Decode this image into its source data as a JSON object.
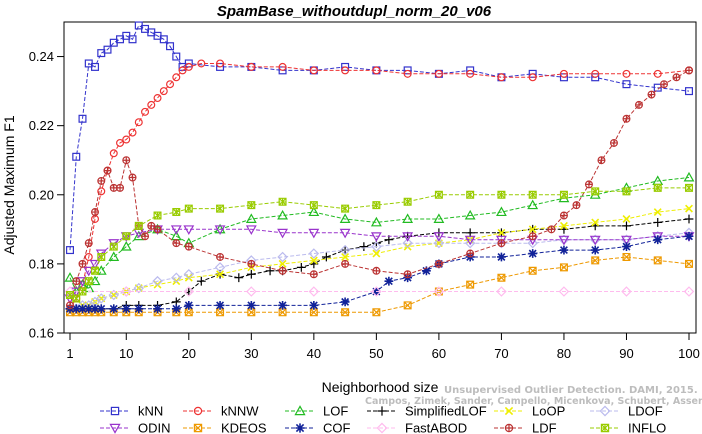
{
  "chart_data": {
    "type": "line",
    "title": "SpamBase_withoutdupl_norm_20_v06",
    "xlabel": "Neighborhood size",
    "ylabel": "Adjusted Maximum F1",
    "xlim": [
      1,
      100
    ],
    "ylim": [
      0.16,
      0.25
    ],
    "xticks": [
      1,
      10,
      20,
      30,
      40,
      50,
      60,
      70,
      80,
      90,
      100
    ],
    "yticks": [
      0.16,
      0.18,
      0.2,
      0.22,
      0.24
    ],
    "ytick_labels": [
      "0.16",
      "0.18",
      "0.20",
      "0.22",
      "0.24"
    ],
    "grid": false,
    "legend_position": "bottom",
    "watermark": [
      "Unsupervised Outlier Detection. DAMI, 2015.",
      "Campos, Zimek, Sander, Campello, Micenkova, Schubert, Assent, Houle"
    ],
    "series": [
      {
        "name": "kNN",
        "color": "#3333cc",
        "marker": "square",
        "x": [
          1,
          2,
          3,
          4,
          5,
          6,
          7,
          8,
          9,
          10,
          11,
          12,
          13,
          14,
          15,
          16,
          17,
          18,
          19,
          20,
          25,
          30,
          35,
          40,
          45,
          50,
          55,
          60,
          65,
          70,
          75,
          80,
          85,
          90,
          95,
          100
        ],
        "y": [
          0.184,
          0.211,
          0.222,
          0.238,
          0.237,
          0.241,
          0.242,
          0.244,
          0.245,
          0.246,
          0.245,
          0.249,
          0.248,
          0.247,
          0.246,
          0.245,
          0.243,
          0.24,
          0.237,
          0.238,
          0.237,
          0.237,
          0.236,
          0.236,
          0.237,
          0.236,
          0.236,
          0.235,
          0.236,
          0.234,
          0.235,
          0.234,
          0.234,
          0.232,
          0.231,
          0.23
        ]
      },
      {
        "name": "kNNW",
        "color": "#ee3333",
        "marker": "circle",
        "x": [
          1,
          2,
          3,
          4,
          5,
          6,
          7,
          8,
          9,
          10,
          11,
          12,
          13,
          14,
          15,
          16,
          17,
          18,
          19,
          20,
          22,
          25,
          30,
          35,
          40,
          45,
          50,
          55,
          60,
          65,
          70,
          75,
          80,
          85,
          90,
          95,
          100
        ],
        "y": [
          0.167,
          0.17,
          0.174,
          0.182,
          0.193,
          0.201,
          0.207,
          0.212,
          0.215,
          0.216,
          0.218,
          0.221,
          0.224,
          0.226,
          0.228,
          0.23,
          0.232,
          0.234,
          0.236,
          0.237,
          0.238,
          0.238,
          0.237,
          0.237,
          0.236,
          0.236,
          0.236,
          0.235,
          0.235,
          0.235,
          0.234,
          0.234,
          0.235,
          0.235,
          0.235,
          0.235,
          0.236
        ]
      },
      {
        "name": "LOF",
        "color": "#22bb22",
        "marker": "triangle-up",
        "x": [
          1,
          2,
          3,
          4,
          5,
          6,
          8,
          10,
          12,
          15,
          18,
          20,
          25,
          30,
          35,
          40,
          45,
          50,
          55,
          60,
          65,
          70,
          75,
          80,
          85,
          90,
          95,
          100
        ],
        "y": [
          0.176,
          0.172,
          0.174,
          0.173,
          0.175,
          0.178,
          0.182,
          0.185,
          0.188,
          0.19,
          0.188,
          0.186,
          0.19,
          0.193,
          0.194,
          0.195,
          0.193,
          0.192,
          0.193,
          0.193,
          0.194,
          0.195,
          0.197,
          0.199,
          0.2,
          0.202,
          0.204,
          0.205
        ]
      },
      {
        "name": "SimplifiedLOF",
        "color": "#000000",
        "marker": "plus",
        "x": [
          1,
          2,
          3,
          4,
          5,
          6,
          8,
          10,
          12,
          15,
          18,
          20,
          22,
          25,
          28,
          30,
          33,
          35,
          38,
          40,
          42,
          45,
          48,
          50,
          52,
          55,
          60,
          65,
          70,
          75,
          80,
          85,
          90,
          95,
          100
        ],
        "y": [
          0.167,
          0.167,
          0.167,
          0.167,
          0.167,
          0.167,
          0.167,
          0.168,
          0.168,
          0.168,
          0.169,
          0.172,
          0.175,
          0.177,
          0.176,
          0.177,
          0.178,
          0.178,
          0.179,
          0.18,
          0.182,
          0.184,
          0.185,
          0.186,
          0.187,
          0.188,
          0.189,
          0.189,
          0.189,
          0.19,
          0.19,
          0.191,
          0.191,
          0.192,
          0.193
        ]
      },
      {
        "name": "LoOP",
        "color": "#eeee00",
        "marker": "cross",
        "x": [
          1,
          2,
          3,
          4,
          5,
          6,
          8,
          10,
          12,
          15,
          18,
          20,
          25,
          30,
          35,
          40,
          45,
          50,
          55,
          60,
          65,
          70,
          75,
          80,
          85,
          90,
          95,
          100
        ],
        "y": [
          0.167,
          0.167,
          0.168,
          0.168,
          0.169,
          0.17,
          0.171,
          0.172,
          0.173,
          0.174,
          0.175,
          0.176,
          0.177,
          0.179,
          0.18,
          0.181,
          0.182,
          0.183,
          0.185,
          0.186,
          0.187,
          0.189,
          0.19,
          0.191,
          0.192,
          0.193,
          0.195,
          0.196
        ]
      },
      {
        "name": "LDOF",
        "color": "#bbbbee",
        "marker": "diamond",
        "x": [
          1,
          2,
          3,
          4,
          5,
          6,
          8,
          10,
          12,
          15,
          18,
          20,
          25,
          30,
          35,
          40,
          45,
          50,
          55,
          60,
          65,
          70,
          75,
          80,
          85,
          90,
          95,
          100
        ],
        "y": [
          0.167,
          0.167,
          0.168,
          0.168,
          0.169,
          0.17,
          0.171,
          0.172,
          0.173,
          0.175,
          0.176,
          0.177,
          0.179,
          0.181,
          0.182,
          0.183,
          0.184,
          0.185,
          0.186,
          0.186,
          0.186,
          0.186,
          0.186,
          0.187,
          0.187,
          0.187,
          0.188,
          0.189
        ]
      },
      {
        "name": "ODIN",
        "color": "#9933cc",
        "marker": "triangle-down",
        "x": [
          1,
          2,
          3,
          4,
          5,
          6,
          8,
          10,
          12,
          15,
          18,
          20,
          25,
          30,
          35,
          40,
          45,
          50,
          55,
          60,
          65,
          70,
          75,
          80,
          85,
          90,
          95,
          100
        ],
        "y": [
          0.17,
          0.172,
          0.175,
          0.178,
          0.18,
          0.183,
          0.186,
          0.188,
          0.189,
          0.19,
          0.19,
          0.19,
          0.19,
          0.19,
          0.189,
          0.189,
          0.189,
          0.188,
          0.188,
          0.188,
          0.187,
          0.187,
          0.187,
          0.187,
          0.187,
          0.187,
          0.188,
          0.188
        ]
      },
      {
        "name": "KDEOS",
        "color": "#ee9900",
        "marker": "square-x",
        "x": [
          1,
          2,
          3,
          4,
          5,
          6,
          8,
          10,
          12,
          15,
          18,
          20,
          25,
          30,
          35,
          40,
          45,
          50,
          55,
          60,
          65,
          70,
          75,
          80,
          85,
          90,
          95,
          100
        ],
        "y": [
          0.166,
          0.166,
          0.166,
          0.166,
          0.166,
          0.166,
          0.166,
          0.166,
          0.166,
          0.166,
          0.166,
          0.166,
          0.166,
          0.166,
          0.166,
          0.166,
          0.166,
          0.166,
          0.168,
          0.172,
          0.174,
          0.176,
          0.178,
          0.179,
          0.181,
          0.182,
          0.181,
          0.18
        ]
      },
      {
        "name": "COF",
        "color": "#112299",
        "marker": "asterisk",
        "x": [
          1,
          2,
          3,
          4,
          5,
          6,
          8,
          10,
          12,
          15,
          18,
          20,
          25,
          30,
          35,
          40,
          45,
          50,
          52,
          55,
          58,
          60,
          65,
          70,
          75,
          80,
          85,
          90,
          95,
          100
        ],
        "y": [
          0.167,
          0.167,
          0.167,
          0.167,
          0.167,
          0.167,
          0.167,
          0.167,
          0.167,
          0.167,
          0.167,
          0.168,
          0.168,
          0.168,
          0.168,
          0.168,
          0.169,
          0.172,
          0.175,
          0.176,
          0.178,
          0.18,
          0.182,
          0.182,
          0.183,
          0.184,
          0.184,
          0.185,
          0.187,
          0.188
        ]
      },
      {
        "name": "FastABOD",
        "color": "#ffbbee",
        "marker": "diamond",
        "x": [
          1,
          10,
          20,
          30,
          40,
          50,
          60,
          70,
          80,
          90,
          100
        ],
        "y": [
          0.172,
          0.172,
          0.172,
          0.172,
          0.172,
          0.172,
          0.172,
          0.172,
          0.172,
          0.172,
          0.172
        ]
      },
      {
        "name": "LDF",
        "color": "#bb3333",
        "marker": "circle-plus",
        "x": [
          1,
          2,
          3,
          4,
          5,
          6,
          7,
          8,
          9,
          10,
          11,
          12,
          13,
          14,
          15,
          18,
          20,
          25,
          30,
          35,
          40,
          45,
          50,
          55,
          60,
          65,
          70,
          75,
          78,
          80,
          82,
          84,
          86,
          88,
          90,
          92,
          94,
          96,
          98,
          100
        ],
        "y": [
          0.168,
          0.175,
          0.18,
          0.186,
          0.195,
          0.204,
          0.207,
          0.202,
          0.202,
          0.21,
          0.205,
          0.191,
          0.188,
          0.191,
          0.19,
          0.186,
          0.185,
          0.182,
          0.18,
          0.178,
          0.177,
          0.18,
          0.178,
          0.177,
          0.18,
          0.183,
          0.186,
          0.188,
          0.19,
          0.194,
          0.197,
          0.203,
          0.21,
          0.215,
          0.222,
          0.226,
          0.229,
          0.232,
          0.234,
          0.236
        ]
      },
      {
        "name": "INFLO",
        "color": "#99cc00",
        "marker": "star-box",
        "x": [
          1,
          2,
          3,
          4,
          5,
          6,
          8,
          10,
          12,
          15,
          18,
          20,
          25,
          30,
          35,
          40,
          45,
          50,
          55,
          60,
          65,
          70,
          75,
          80,
          85,
          90,
          95,
          100
        ],
        "y": [
          0.171,
          0.17,
          0.172,
          0.175,
          0.178,
          0.182,
          0.185,
          0.188,
          0.191,
          0.194,
          0.195,
          0.196,
          0.196,
          0.197,
          0.198,
          0.197,
          0.196,
          0.197,
          0.198,
          0.2,
          0.2,
          0.2,
          0.2,
          0.2,
          0.201,
          0.201,
          0.202,
          0.202
        ]
      }
    ]
  }
}
